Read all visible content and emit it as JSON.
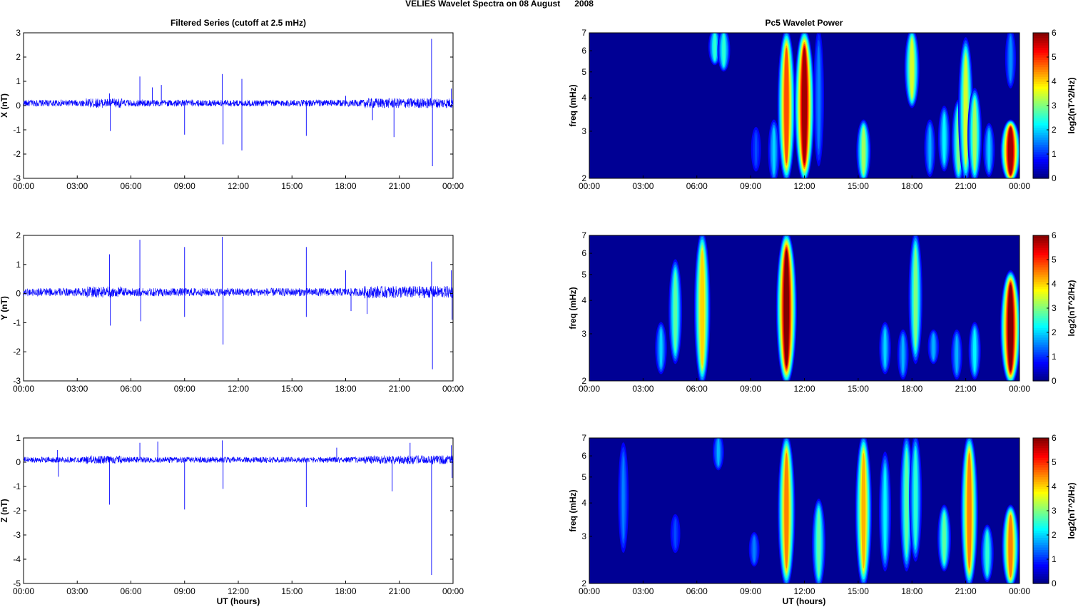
{
  "figure": {
    "title_main": "VELIES Wavelet Spectra on 08 August",
    "title_year": "2008"
  },
  "left_column": {
    "title": "Filtered Series (cutoff at 2.5 mHz)",
    "xlabel": "UT (hours)"
  },
  "right_column": {
    "title": "Pc5 Wavelet Power",
    "xlabel": "UT (hours)"
  },
  "x_ticks": [
    "00:00",
    "03:00",
    "06:00",
    "09:00",
    "12:00",
    "15:00",
    "18:00",
    "21:00",
    "00:00"
  ],
  "colors": {
    "trace": "#0000ff",
    "axis": "#000000"
  },
  "chart_data": [
    {
      "type": "line",
      "panel": "X",
      "ylabel": "X (nT)",
      "ylim": [
        -3,
        3
      ],
      "yticks": [
        "3",
        "2",
        "1",
        "0",
        "-1",
        "-2",
        "-3"
      ],
      "x_range_hours": [
        0,
        24
      ],
      "baseline": 0.1,
      "noise": 0.14,
      "spikes": [
        {
          "x": 4.8,
          "y": 0.5
        },
        {
          "x": 4.85,
          "y": -1.05
        },
        {
          "x": 6.5,
          "y": 1.2
        },
        {
          "x": 7.2,
          "y": 0.75
        },
        {
          "x": 7.7,
          "y": 0.85
        },
        {
          "x": 9.0,
          "y": -1.2
        },
        {
          "x": 11.1,
          "y": 1.3
        },
        {
          "x": 11.15,
          "y": -1.6
        },
        {
          "x": 12.2,
          "y": 1.1
        },
        {
          "x": 12.2,
          "y": -1.85
        },
        {
          "x": 15.8,
          "y": -1.25
        },
        {
          "x": 18.0,
          "y": 0.4
        },
        {
          "x": 19.5,
          "y": -0.6
        },
        {
          "x": 20.7,
          "y": -1.3
        },
        {
          "x": 22.8,
          "y": 2.75
        },
        {
          "x": 22.85,
          "y": -2.5
        },
        {
          "x": 23.9,
          "y": 0.7
        }
      ]
    },
    {
      "type": "line",
      "panel": "Y",
      "ylabel": "Y (nT)",
      "ylim": [
        -3,
        2
      ],
      "yticks": [
        "2",
        "1",
        "0",
        "-1",
        "-2",
        "-3"
      ],
      "x_range_hours": [
        0,
        24
      ],
      "baseline": 0.05,
      "noise": 0.14,
      "spikes": [
        {
          "x": 4.8,
          "y": 1.35
        },
        {
          "x": 4.85,
          "y": -1.1
        },
        {
          "x": 6.5,
          "y": 1.85
        },
        {
          "x": 6.55,
          "y": -0.95
        },
        {
          "x": 9.0,
          "y": 1.6
        },
        {
          "x": 9.0,
          "y": -0.8
        },
        {
          "x": 11.1,
          "y": 1.95
        },
        {
          "x": 11.15,
          "y": -1.75
        },
        {
          "x": 15.8,
          "y": 1.6
        },
        {
          "x": 15.8,
          "y": -0.8
        },
        {
          "x": 18.0,
          "y": 0.8
        },
        {
          "x": 18.3,
          "y": -0.6
        },
        {
          "x": 19.2,
          "y": -0.7
        },
        {
          "x": 22.8,
          "y": 1.1
        },
        {
          "x": 22.85,
          "y": -2.6
        },
        {
          "x": 23.9,
          "y": 0.8
        },
        {
          "x": 23.95,
          "y": -0.9
        }
      ]
    },
    {
      "type": "line",
      "panel": "Z",
      "ylabel": "Z (nT)",
      "ylim": [
        -5,
        1
      ],
      "yticks": [
        "1",
        "0",
        "-1",
        "-2",
        "-3",
        "-4",
        "-5"
      ],
      "x_range_hours": [
        0,
        24
      ],
      "baseline": 0.1,
      "noise": 0.12,
      "spikes": [
        {
          "x": 1.9,
          "y": 0.5
        },
        {
          "x": 1.95,
          "y": -0.6
        },
        {
          "x": 4.8,
          "y": -1.75
        },
        {
          "x": 6.5,
          "y": 0.8
        },
        {
          "x": 7.5,
          "y": 0.85
        },
        {
          "x": 9.0,
          "y": -1.95
        },
        {
          "x": 11.1,
          "y": 0.9
        },
        {
          "x": 11.15,
          "y": -1.1
        },
        {
          "x": 15.8,
          "y": -1.85
        },
        {
          "x": 17.5,
          "y": 0.6
        },
        {
          "x": 20.6,
          "y": -1.2
        },
        {
          "x": 21.6,
          "y": 0.8
        },
        {
          "x": 22.8,
          "y": -4.65
        },
        {
          "x": 23.9,
          "y": 0.7
        },
        {
          "x": 23.95,
          "y": -0.65
        }
      ]
    },
    {
      "type": "heatmap",
      "panel": "X",
      "ylabel": "freq (mHz)",
      "ylim": [
        2,
        7
      ],
      "y_scale": "log",
      "yticks": [
        "7",
        "6",
        "5",
        "4",
        "3",
        "2"
      ],
      "x_range_hours": [
        0,
        24
      ],
      "colorbar": {
        "label": "log2(nT^2/Hz)",
        "range": [
          0,
          6
        ],
        "ticks": [
          "6",
          "5",
          "4",
          "3",
          "2",
          "1",
          "0"
        ]
      },
      "blobs": [
        {
          "x": 7.0,
          "f_lo": 5.5,
          "f_hi": 7.0,
          "p": 2.5
        },
        {
          "x": 7.5,
          "f_lo": 5.2,
          "f_hi": 7.0,
          "p": 2.5
        },
        {
          "x": 9.3,
          "f_lo": 2.2,
          "f_hi": 3.0,
          "p": 1.2
        },
        {
          "x": 10.3,
          "f_lo": 2.0,
          "f_hi": 3.2,
          "p": 2.0
        },
        {
          "x": 11.0,
          "f_lo": 2.0,
          "f_hi": 7.0,
          "p": 4.8
        },
        {
          "x": 12.0,
          "f_lo": 2.0,
          "f_hi": 7.0,
          "p": 5.8
        },
        {
          "x": 12.8,
          "f_lo": 2.3,
          "f_hi": 7.0,
          "p": 1.5
        },
        {
          "x": 15.3,
          "f_lo": 2.0,
          "f_hi": 3.2,
          "p": 3.2
        },
        {
          "x": 18.0,
          "f_lo": 3.8,
          "f_hi": 7.0,
          "p": 3.5
        },
        {
          "x": 19.0,
          "f_lo": 2.1,
          "f_hi": 3.2,
          "p": 1.8
        },
        {
          "x": 19.8,
          "f_lo": 2.2,
          "f_hi": 3.6,
          "p": 2.2
        },
        {
          "x": 20.6,
          "f_lo": 2.0,
          "f_hi": 3.8,
          "p": 3.0
        },
        {
          "x": 21.0,
          "f_lo": 2.0,
          "f_hi": 6.5,
          "p": 3.5
        },
        {
          "x": 21.5,
          "f_lo": 2.0,
          "f_hi": 4.2,
          "p": 3.2
        },
        {
          "x": 22.3,
          "f_lo": 2.1,
          "f_hi": 3.1,
          "p": 2.0
        },
        {
          "x": 23.5,
          "f_lo": 2.0,
          "f_hi": 3.2,
          "p": 5.8
        },
        {
          "x": 23.5,
          "f_lo": 4.5,
          "f_hi": 7.0,
          "p": 1.6
        }
      ]
    },
    {
      "type": "heatmap",
      "panel": "Y",
      "ylabel": "freq (mHz)",
      "ylim": [
        2,
        7
      ],
      "y_scale": "log",
      "yticks": [
        "7",
        "6",
        "5",
        "4",
        "3",
        "2"
      ],
      "x_range_hours": [
        0,
        24
      ],
      "colorbar": {
        "label": "log2(nT^2/Hz)",
        "range": [
          0,
          6
        ],
        "ticks": [
          "6",
          "5",
          "4",
          "3",
          "2",
          "1",
          "0"
        ]
      },
      "blobs": [
        {
          "x": 4.0,
          "f_lo": 2.2,
          "f_hi": 3.2,
          "p": 2.0
        },
        {
          "x": 4.8,
          "f_lo": 2.4,
          "f_hi": 5.5,
          "p": 2.8
        },
        {
          "x": 6.3,
          "f_lo": 2.0,
          "f_hi": 7.0,
          "p": 4.0
        },
        {
          "x": 11.0,
          "f_lo": 2.0,
          "f_hi": 7.0,
          "p": 6.0
        },
        {
          "x": 16.5,
          "f_lo": 2.2,
          "f_hi": 3.2,
          "p": 2.0
        },
        {
          "x": 17.5,
          "f_lo": 2.1,
          "f_hi": 3.0,
          "p": 1.8
        },
        {
          "x": 18.2,
          "f_lo": 2.4,
          "f_hi": 7.0,
          "p": 3.0
        },
        {
          "x": 19.2,
          "f_lo": 2.4,
          "f_hi": 3.0,
          "p": 1.8
        },
        {
          "x": 20.5,
          "f_lo": 2.1,
          "f_hi": 3.0,
          "p": 1.8
        },
        {
          "x": 21.5,
          "f_lo": 2.1,
          "f_hi": 3.2,
          "p": 2.2
        },
        {
          "x": 23.5,
          "f_lo": 2.0,
          "f_hi": 5.0,
          "p": 6.0
        }
      ]
    },
    {
      "type": "heatmap",
      "panel": "Z",
      "ylabel": "freq (mHz)",
      "ylim": [
        2,
        7
      ],
      "y_scale": "log",
      "yticks": [
        "7",
        "6",
        "5",
        "4",
        "3",
        "2"
      ],
      "x_range_hours": [
        0,
        24
      ],
      "colorbar": {
        "label": "log2(nT^2/Hz)",
        "range": [
          0,
          6
        ],
        "ticks": [
          "6",
          "5",
          "4",
          "3",
          "2",
          "1",
          "0"
        ]
      },
      "blobs": [
        {
          "x": 1.9,
          "f_lo": 2.7,
          "f_hi": 6.5,
          "p": 1.5
        },
        {
          "x": 4.8,
          "f_lo": 2.7,
          "f_hi": 3.5,
          "p": 1.2
        },
        {
          "x": 7.2,
          "f_lo": 5.5,
          "f_hi": 7.0,
          "p": 1.8
        },
        {
          "x": 9.2,
          "f_lo": 2.4,
          "f_hi": 3.0,
          "p": 1.5
        },
        {
          "x": 11.0,
          "f_lo": 2.0,
          "f_hi": 7.0,
          "p": 4.5
        },
        {
          "x": 12.8,
          "f_lo": 2.0,
          "f_hi": 4.0,
          "p": 2.8
        },
        {
          "x": 15.3,
          "f_lo": 2.0,
          "f_hi": 7.0,
          "p": 4.2
        },
        {
          "x": 16.5,
          "f_lo": 2.3,
          "f_hi": 6.0,
          "p": 2.2
        },
        {
          "x": 17.7,
          "f_lo": 2.3,
          "f_hi": 7.0,
          "p": 2.8
        },
        {
          "x": 18.2,
          "f_lo": 2.5,
          "f_hi": 7.0,
          "p": 2.5
        },
        {
          "x": 19.8,
          "f_lo": 2.3,
          "f_hi": 3.8,
          "p": 2.8
        },
        {
          "x": 21.2,
          "f_lo": 2.0,
          "f_hi": 7.0,
          "p": 4.5
        },
        {
          "x": 22.2,
          "f_lo": 2.1,
          "f_hi": 3.2,
          "p": 2.5
        },
        {
          "x": 23.5,
          "f_lo": 2.0,
          "f_hi": 3.8,
          "p": 4.5
        }
      ]
    }
  ]
}
